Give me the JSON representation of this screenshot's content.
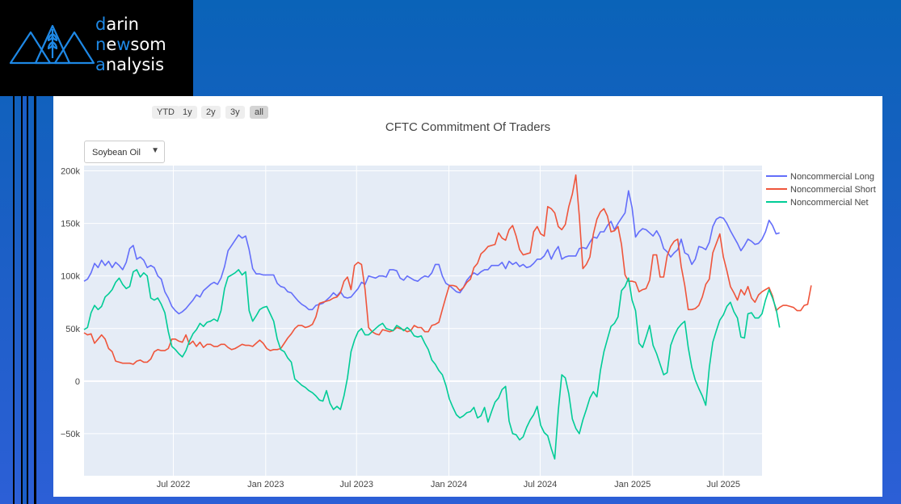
{
  "logo": {
    "lines": [
      {
        "first": "d",
        "rest": "arin"
      },
      {
        "first": "n",
        "rest": "e",
        "hl2": "w",
        "rest2": "som"
      },
      {
        "first": "a",
        "rest": "nalysis"
      }
    ]
  },
  "range_selector": [
    "YTD",
    "1y",
    "2y",
    "3y",
    "all"
  ],
  "range_selector_active": "all",
  "dropdown": {
    "selected": "Soybean Oil"
  },
  "chart_data": {
    "type": "line",
    "title": "CFTC Commitment Of Traders",
    "x_start": "2022-01-04",
    "x_step_days": 7,
    "x_end": "2025-09-16",
    "ylim": [
      -90000,
      205000
    ],
    "y_ticks": [
      200000,
      150000,
      100000,
      50000,
      0,
      -50000
    ],
    "y_tick_labels": [
      "200k",
      "150k",
      "100k",
      "50k",
      "0",
      "−50k"
    ],
    "x_ticks": [
      "2022-07-01",
      "2023-01-01",
      "2023-07-01",
      "2024-01-01",
      "2024-07-01",
      "2025-01-01",
      "2025-07-01"
    ],
    "x_tick_labels": [
      "Jul 2022",
      "Jan 2023",
      "Jul 2023",
      "Jan 2024",
      "Jul 2024",
      "Jan 2025",
      "Jul 2025"
    ],
    "legend_position": "top-right",
    "grid": true,
    "series": [
      {
        "name": "Noncommercial Long",
        "color": "#636efa",
        "values": [
          95000,
          97000,
          103000,
          112000,
          108000,
          115000,
          110000,
          114000,
          108000,
          113000,
          110000,
          106000,
          113000,
          126000,
          129000,
          116000,
          118000,
          115000,
          108000,
          110000,
          108000,
          100000,
          97000,
          85000,
          79000,
          71000,
          67000,
          64000,
          66000,
          69000,
          73000,
          77000,
          82000,
          80000,
          86000,
          89000,
          92000,
          94000,
          92000,
          98000,
          109000,
          124000,
          129000,
          134000,
          139000,
          136000,
          138000,
          125000,
          107000,
          102000,
          102000,
          101000,
          101000,
          101000,
          101000,
          93000,
          90000,
          89000,
          85000,
          84000,
          80000,
          76000,
          73000,
          71000,
          68000,
          68000,
          72000,
          73000,
          74000,
          77000,
          80000,
          84000,
          81000,
          85000,
          80000,
          79000,
          80000,
          84000,
          88000,
          94000,
          92000,
          100000,
          99000,
          98000,
          100000,
          100000,
          99000,
          106000,
          106000,
          105000,
          98000,
          96000,
          100000,
          98000,
          96000,
          95000,
          98000,
          100000,
          99000,
          103000,
          111000,
          111000,
          100000,
          93000,
          91000,
          88000,
          85000,
          84000,
          89000,
          96000,
          100000,
          103000,
          101000,
          104000,
          106000,
          106000,
          110000,
          110000,
          110000,
          113000,
          107000,
          114000,
          111000,
          113000,
          109000,
          111000,
          108000,
          109000,
          112000,
          116000,
          116000,
          119000,
          125000,
          116000,
          123000,
          128000,
          116000,
          118000,
          119000,
          119000,
          119000,
          126000,
          127000,
          126000,
          132000,
          137000,
          136000,
          142000,
          142000,
          148000,
          152000,
          144000,
          150000,
          155000,
          160000,
          181000,
          165000,
          137000,
          142000,
          145000,
          144000,
          141000,
          138000,
          143000,
          137000,
          126000,
          123000,
          118000,
          122000,
          125000,
          135000,
          122000,
          120000,
          111000,
          116000,
          128000,
          127000,
          125000,
          132000,
          147000,
          154000,
          156000,
          155000,
          150000,
          143000,
          137000,
          131000,
          124000,
          129000,
          135000,
          133000,
          130000,
          131000,
          135000,
          142000,
          153000,
          148000,
          140000,
          141000
        ]
      },
      {
        "name": "Noncommercial Short",
        "color": "#ef553b",
        "values": [
          46000,
          44000,
          45000,
          36000,
          40000,
          44000,
          40000,
          31000,
          28000,
          19000,
          18000,
          17000,
          17000,
          17000,
          16000,
          19000,
          20000,
          18000,
          18000,
          21000,
          28000,
          30000,
          29000,
          29000,
          31000,
          40000,
          40000,
          38000,
          37000,
          44000,
          35000,
          38000,
          33000,
          37000,
          32000,
          35000,
          35000,
          33000,
          33000,
          35000,
          35000,
          32000,
          30000,
          31000,
          33000,
          35000,
          34000,
          34000,
          33000,
          36000,
          39000,
          36000,
          31000,
          29000,
          30000,
          30000,
          31000,
          36000,
          41000,
          45000,
          50000,
          53000,
          53000,
          51000,
          52000,
          54000,
          61000,
          74000,
          75000,
          76000,
          77000,
          79000,
          80000,
          84000,
          95000,
          99000,
          87000,
          110000,
          113000,
          111000,
          87000,
          51000,
          47000,
          45000,
          44000,
          49000,
          48000,
          47000,
          48000,
          51000,
          50000,
          49000,
          47000,
          48000,
          53000,
          51000,
          51000,
          47000,
          47000,
          53000,
          54000,
          56000,
          68000,
          80000,
          91000,
          91000,
          90000,
          86000,
          89000,
          94000,
          97000,
          108000,
          112000,
          121000,
          124000,
          128000,
          129000,
          130000,
          141000,
          136000,
          134000,
          144000,
          148000,
          138000,
          125000,
          120000,
          121000,
          122000,
          142000,
          147000,
          140000,
          138000,
          166000,
          164000,
          160000,
          147000,
          144000,
          149000,
          166000,
          178000,
          196000,
          157000,
          107000,
          111000,
          118000,
          140000,
          154000,
          161000,
          164000,
          157000,
          142000,
          143000,
          147000,
          130000,
          101000,
          95000,
          95000,
          94000,
          85000,
          87000,
          88000,
          96000,
          120000,
          120000,
          99000,
          99000,
          119000,
          128000,
          133000,
          135000,
          109000,
          91000,
          68000,
          68000,
          69000,
          72000,
          80000,
          92000,
          97000,
          122000,
          131000,
          140000,
          118000,
          105000,
          90000,
          84000,
          77000,
          87000,
          82000,
          90000,
          79000,
          75000,
          82000,
          85000,
          87000,
          89000,
          81000,
          67000,
          70000,
          72000,
          72000,
          71000,
          70000,
          67000,
          67000,
          72000,
          73000,
          91000
        ]
      },
      {
        "name": "Noncommercial Net",
        "color": "#00cc96",
        "values": [
          49000,
          51000,
          65000,
          72000,
          68000,
          71000,
          80000,
          83000,
          87000,
          94000,
          98000,
          92000,
          88000,
          90000,
          104000,
          106000,
          99000,
          103000,
          100000,
          79000,
          77000,
          79000,
          73000,
          65000,
          47000,
          33000,
          30000,
          26000,
          23000,
          29000,
          38000,
          45000,
          49000,
          55000,
          52000,
          56000,
          57000,
          59000,
          57000,
          67000,
          88000,
          99000,
          101000,
          103000,
          106000,
          101000,
          104000,
          67000,
          57000,
          62000,
          68000,
          70000,
          71000,
          64000,
          57000,
          40000,
          30000,
          28000,
          22000,
          18000,
          2000,
          -1000,
          -4000,
          -6000,
          -9000,
          -11000,
          -14000,
          -18000,
          -19000,
          -9000,
          -21000,
          -27000,
          -24000,
          -27000,
          -14000,
          3000,
          28000,
          39000,
          47000,
          50000,
          44000,
          44000,
          47000,
          50000,
          53000,
          55000,
          50000,
          49000,
          48000,
          53000,
          51000,
          48000,
          51000,
          48000,
          43000,
          42000,
          43000,
          36000,
          30000,
          20000,
          16000,
          10000,
          6000,
          -4000,
          -17000,
          -25000,
          -32000,
          -35000,
          -33000,
          -30000,
          -29000,
          -25000,
          -35000,
          -33000,
          -25000,
          -39000,
          -29000,
          -20000,
          -16000,
          -8000,
          -5000,
          -38000,
          -50000,
          -51000,
          -56000,
          -53000,
          -44000,
          -37000,
          -32000,
          -24000,
          -42000,
          -49000,
          -52000,
          -64000,
          -74000,
          -28000,
          6000,
          3000,
          -12000,
          -36000,
          -45000,
          -50000,
          -37000,
          -27000,
          -16000,
          -10000,
          -15000,
          10000,
          28000,
          40000,
          52000,
          55000,
          61000,
          86000,
          90000,
          98000,
          77000,
          67000,
          36000,
          32000,
          42000,
          53000,
          34000,
          26000,
          16000,
          6000,
          8000,
          34000,
          43000,
          50000,
          54000,
          57000,
          32000,
          13000,
          1000,
          -7000,
          -14000,
          -23000,
          13000,
          37000,
          48000,
          58000,
          63000,
          71000,
          75000,
          66000,
          60000,
          42000,
          41000,
          64000,
          65000,
          60000,
          60000,
          64000,
          77000,
          87000,
          79000,
          69000,
          51000
        ]
      }
    ]
  }
}
